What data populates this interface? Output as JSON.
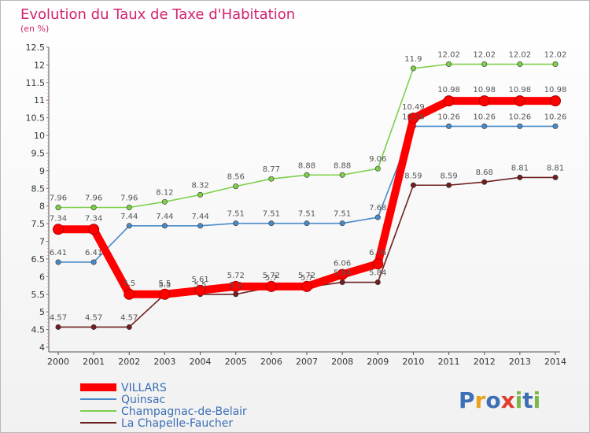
{
  "chart_data": {
    "type": "line",
    "title": "Evolution du Taux de Taxe d'Habitation",
    "subtitle": "(en %)",
    "categories": [
      "2000",
      "2001",
      "2002",
      "2003",
      "2004",
      "2005",
      "2006",
      "2007",
      "2008",
      "2009",
      "2010",
      "2011",
      "2012",
      "2013",
      "2014"
    ],
    "ylim": [
      4,
      12.5
    ],
    "yticks": [
      "4",
      "4.5",
      "5",
      "5.5",
      "6",
      "6.5",
      "7",
      "7.5",
      "8",
      "8.5",
      "9",
      "9.5",
      "10",
      "10.5",
      "11",
      "11.5",
      "12",
      "12.5"
    ],
    "grid": false,
    "legend_position": "bottom-left",
    "series": [
      {
        "name": "VILLARS",
        "color": "#ff0000",
        "values": [
          7.34,
          7.34,
          5.5,
          5.5,
          5.61,
          5.72,
          5.72,
          5.72,
          6.06,
          6.36,
          10.49,
          10.98,
          10.98,
          10.98,
          10.98
        ],
        "labels": [
          "7.34",
          "7.34",
          "5.5",
          "5.5",
          "5.61",
          "5.72",
          "5.72",
          "5.72",
          "6.06",
          "6.36",
          "10.49",
          "10.98",
          "10.98",
          "10.98",
          "10.98"
        ]
      },
      {
        "name": "Quinsac",
        "color": "#4a8ac9",
        "values": [
          6.41,
          6.41,
          7.44,
          7.44,
          7.44,
          7.51,
          7.51,
          7.51,
          7.51,
          7.68,
          10.26,
          10.26,
          10.26,
          10.26,
          10.26
        ],
        "labels": [
          "6.41",
          "6.41",
          "7.44",
          "7.44",
          "7.44",
          "7.51",
          "7.51",
          "7.51",
          "7.51",
          "7.68",
          "10.26",
          "10.26",
          "10.26",
          "10.26",
          "10.26"
        ]
      },
      {
        "name": "Champagnac-de-Belair",
        "color": "#7ed04a",
        "values": [
          7.96,
          7.96,
          7.96,
          8.12,
          8.32,
          8.56,
          8.77,
          8.88,
          8.88,
          9.06,
          11.9,
          12.02,
          12.02,
          12.02,
          12.02
        ],
        "labels": [
          "7.96",
          "7.96",
          "7.96",
          "8.12",
          "8.32",
          "8.56",
          "8.77",
          "8.88",
          "8.88",
          "9.06",
          "11.9",
          "12.02",
          "12.02",
          "12.02",
          "12.02"
        ]
      },
      {
        "name": "La Chapelle-Faucher",
        "color": "#6e1f1f",
        "values": [
          4.57,
          4.57,
          4.57,
          5.5,
          5.5,
          5.5,
          5.7,
          5.7,
          5.84,
          5.84,
          8.59,
          8.59,
          8.68,
          8.81,
          8.81
        ],
        "labels": [
          "4.57",
          "4.57",
          "4.57",
          "5.5",
          "5.5",
          "5.5",
          "5.7",
          "5.7",
          "5.84",
          "5.84",
          "8.59",
          "8.59",
          "8.68",
          "8.81",
          "8.81"
        ]
      }
    ]
  },
  "logo": {
    "p": "P",
    "r": "r",
    "o": "o",
    "x": "x",
    "i1": "i",
    "t": "t",
    "i2": "i"
  }
}
